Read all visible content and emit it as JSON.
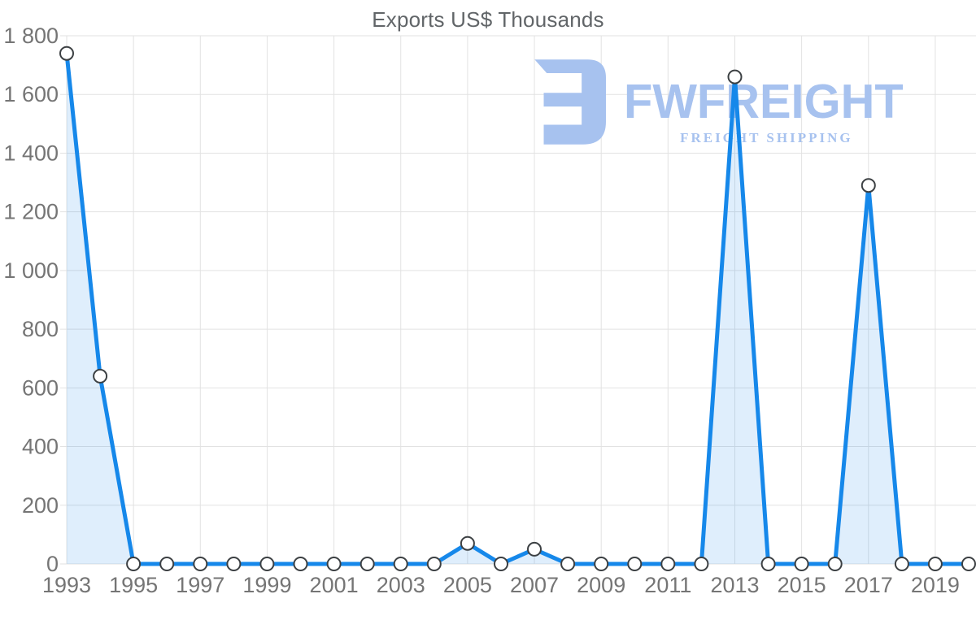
{
  "title": "Exports US$ Thousands",
  "watermark": {
    "brand": "FWFREIGHT",
    "tagline": "FREIGHT SHIPPING",
    "color": "#a7c2ef"
  },
  "chart_data": {
    "type": "area",
    "title": "Exports US$ Thousands",
    "xlabel": "",
    "ylabel": "Exports US$ Thousands",
    "x": [
      1993,
      1994,
      1995,
      1996,
      1997,
      1998,
      1999,
      2000,
      2001,
      2002,
      2003,
      2004,
      2005,
      2006,
      2007,
      2008,
      2009,
      2010,
      2011,
      2012,
      2013,
      2014,
      2015,
      2016,
      2017,
      2018,
      2019,
      2020
    ],
    "values": [
      1740,
      640,
      0,
      0,
      0,
      0,
      0,
      0,
      0,
      0,
      0,
      0,
      70,
      0,
      50,
      0,
      0,
      0,
      0,
      0,
      1660,
      0,
      0,
      0,
      1290,
      0,
      0,
      0
    ],
    "ylim": [
      0,
      1800
    ],
    "grid": true,
    "legend": "none",
    "markers": "circle",
    "y_ticks": [
      {
        "value": 0,
        "label": "0"
      },
      {
        "value": 200,
        "label": "200"
      },
      {
        "value": 400,
        "label": "400"
      },
      {
        "value": 600,
        "label": "600"
      },
      {
        "value": 800,
        "label": "800"
      },
      {
        "value": 1000,
        "label": "1 000"
      },
      {
        "value": 1200,
        "label": "1 200"
      },
      {
        "value": 1400,
        "label": "1 400"
      },
      {
        "value": 1600,
        "label": "1 600"
      },
      {
        "value": 1800,
        "label": "1 800"
      }
    ],
    "x_tick_labels": [
      "1993",
      "1995",
      "1997",
      "1999",
      "2001",
      "2003",
      "2005",
      "2007",
      "2009",
      "2011",
      "2013",
      "2015",
      "2017",
      "2019"
    ],
    "colors": {
      "line": "#1688ea",
      "area_fill": "rgba(25, 136, 235, 0.14)",
      "marker_fill": "#ffffff",
      "marker_stroke": "#3c4043",
      "grid": "#e2e2e2",
      "tick_text": "#757575",
      "title_text": "#616568"
    }
  }
}
